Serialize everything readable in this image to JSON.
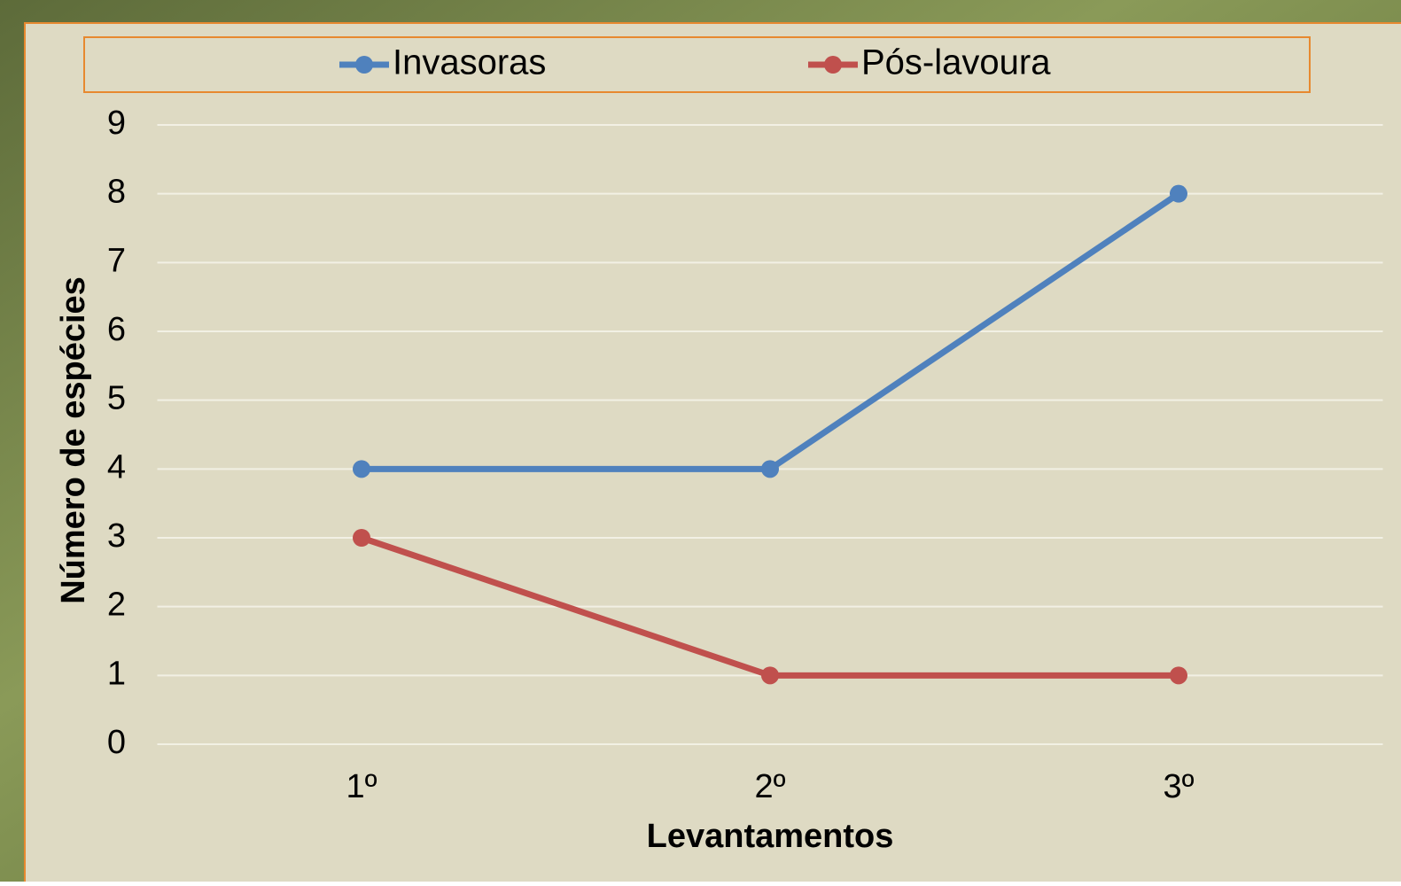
{
  "chart_data": {
    "type": "line",
    "categories": [
      "1º",
      "2º",
      "3º"
    ],
    "series": [
      {
        "name": "Invasoras",
        "color": "#4f81bd",
        "values": [
          4,
          4,
          8
        ]
      },
      {
        "name": "Pós-lavoura",
        "color": "#c0504d",
        "values": [
          3,
          1,
          1
        ]
      }
    ],
    "x_label": "Levantamentos",
    "y_label": "Número de espécies",
    "ylim": [
      0,
      9
    ],
    "yticks": [
      0,
      1,
      2,
      3,
      4,
      5,
      6,
      7,
      8,
      9
    ],
    "grid": true,
    "legend": "top"
  }
}
